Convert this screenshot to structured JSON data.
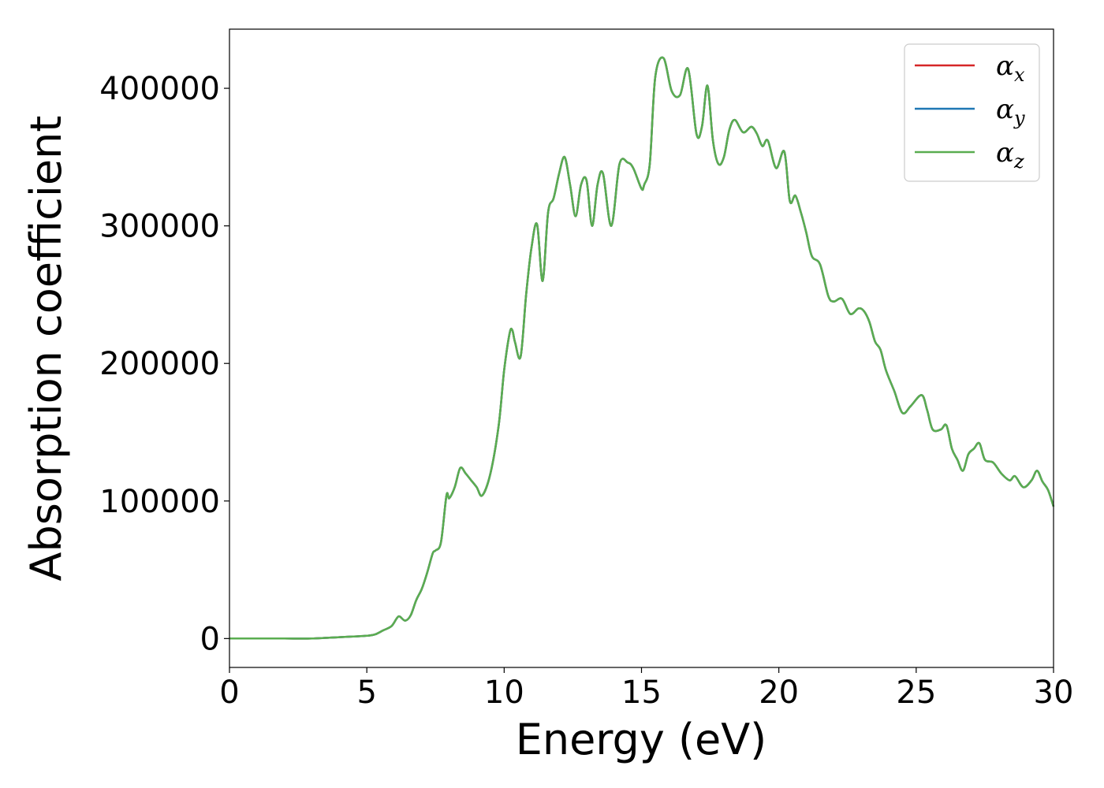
{
  "chart_data": {
    "type": "line",
    "xlabel": "Energy (eV)",
    "ylabel": "Absorption coefficient",
    "xlim": [
      0,
      30
    ],
    "ylim": [
      -21000,
      443000
    ],
    "xticks": [
      0,
      5,
      10,
      15,
      20,
      25,
      30
    ],
    "xtick_labels": [
      "0",
      "5",
      "10",
      "15",
      "20",
      "25",
      "30"
    ],
    "yticks": [
      0,
      100000,
      200000,
      300000,
      400000
    ],
    "ytick_labels": [
      "0",
      "100000",
      "200000",
      "300000",
      "400000"
    ],
    "grid": false,
    "legend_position": "top-right",
    "x": [
      0,
      1,
      2,
      3,
      4,
      4.5,
      5,
      5.3,
      5.6,
      5.9,
      6.1,
      6.2,
      6.4,
      6.6,
      6.8,
      7.0,
      7.2,
      7.4,
      7.5,
      7.7,
      7.9,
      8.0,
      8.2,
      8.4,
      8.6,
      8.8,
      9.0,
      9.2,
      9.5,
      9.8,
      10.0,
      10.2,
      10.3,
      10.4,
      10.6,
      10.8,
      11.0,
      11.2,
      11.4,
      11.6,
      11.8,
      12.0,
      12.2,
      12.4,
      12.6,
      12.8,
      13.0,
      13.2,
      13.4,
      13.6,
      13.9,
      14.2,
      14.5,
      14.7,
      15.0,
      15.1,
      15.3,
      15.5,
      15.8,
      16.1,
      16.4,
      16.7,
      17.0,
      17.2,
      17.4,
      17.6,
      17.8,
      18.0,
      18.2,
      18.4,
      18.7,
      19.0,
      19.2,
      19.4,
      19.6,
      19.9,
      20.2,
      20.4,
      20.6,
      20.8,
      21.0,
      21.2,
      21.5,
      21.8,
      22.0,
      22.3,
      22.6,
      22.9,
      23.1,
      23.3,
      23.5,
      23.7,
      23.9,
      24.2,
      24.5,
      24.8,
      25.2,
      25.4,
      25.6,
      25.9,
      26.1,
      26.3,
      26.5,
      26.7,
      26.9,
      27.1,
      27.3,
      27.5,
      27.8,
      28.1,
      28.4,
      28.6,
      28.9,
      29.2,
      29.4,
      29.6,
      29.8,
      30.0
    ],
    "series": [
      {
        "name": "α_x",
        "label_main": "α",
        "label_sub": "x",
        "color": "#d62728",
        "values": [
          0,
          0,
          0,
          0,
          1000,
          1500,
          2000,
          3000,
          6000,
          9000,
          15000,
          16000,
          13000,
          17000,
          28000,
          36000,
          48000,
          62000,
          64000,
          70000,
          104000,
          102000,
          110000,
          124000,
          120000,
          115000,
          110000,
          104000,
          120000,
          155000,
          195000,
          222000,
          224000,
          215000,
          205000,
          250000,
          285000,
          301000,
          260000,
          310000,
          320000,
          338000,
          350000,
          330000,
          307000,
          330000,
          333000,
          300000,
          330000,
          338000,
          300000,
          345000,
          346000,
          342000,
          327000,
          330000,
          345000,
          408000,
          422000,
          398000,
          395000,
          414000,
          367000,
          372000,
          402000,
          362000,
          345000,
          350000,
          370000,
          377000,
          368000,
          372000,
          367000,
          358000,
          362000,
          342000,
          354000,
          318000,
          322000,
          310000,
          295000,
          278000,
          272000,
          249000,
          245000,
          247000,
          236000,
          240000,
          238000,
          230000,
          216000,
          210000,
          195000,
          180000,
          164000,
          169000,
          177000,
          166000,
          152000,
          152000,
          155000,
          138000,
          130000,
          122000,
          134000,
          138000,
          142000,
          130000,
          128000,
          120000,
          115000,
          118000,
          110000,
          115000,
          122000,
          114000,
          108000,
          96000
        ]
      },
      {
        "name": "α_y",
        "label_main": "α",
        "label_sub": "y",
        "color": "#1f77b4",
        "values": [
          0,
          0,
          0,
          0,
          1000,
          1500,
          2000,
          3000,
          6000,
          9000,
          15000,
          16000,
          13000,
          17000,
          28000,
          36000,
          48000,
          62000,
          64000,
          70000,
          104000,
          102000,
          110000,
          124000,
          120000,
          115000,
          110000,
          104000,
          120000,
          155000,
          195000,
          222000,
          224000,
          215000,
          205000,
          250000,
          285000,
          301000,
          260000,
          310000,
          320000,
          338000,
          350000,
          330000,
          307000,
          330000,
          333000,
          300000,
          330000,
          338000,
          300000,
          345000,
          346000,
          342000,
          327000,
          330000,
          345000,
          408000,
          422000,
          398000,
          395000,
          414000,
          367000,
          372000,
          402000,
          362000,
          345000,
          350000,
          370000,
          377000,
          368000,
          372000,
          367000,
          358000,
          362000,
          342000,
          354000,
          318000,
          322000,
          310000,
          295000,
          278000,
          272000,
          249000,
          245000,
          247000,
          236000,
          240000,
          238000,
          230000,
          216000,
          210000,
          195000,
          180000,
          164000,
          169000,
          177000,
          166000,
          152000,
          152000,
          155000,
          138000,
          130000,
          122000,
          134000,
          138000,
          142000,
          130000,
          128000,
          120000,
          115000,
          118000,
          110000,
          115000,
          122000,
          114000,
          108000,
          96000
        ]
      },
      {
        "name": "α_z",
        "label_main": "α",
        "label_sub": "z",
        "color": "#5aad50",
        "values": [
          0,
          0,
          0,
          0,
          1000,
          1500,
          2000,
          3000,
          6000,
          9000,
          15000,
          16000,
          13000,
          17000,
          28000,
          36000,
          48000,
          62000,
          64000,
          70000,
          104000,
          102000,
          110000,
          124000,
          120000,
          115000,
          110000,
          104000,
          120000,
          155000,
          195000,
          222000,
          224000,
          215000,
          205000,
          250000,
          285000,
          301000,
          260000,
          310000,
          320000,
          338000,
          350000,
          330000,
          307000,
          330000,
          333000,
          300000,
          330000,
          338000,
          300000,
          345000,
          346000,
          342000,
          327000,
          330000,
          345000,
          408000,
          422000,
          398000,
          395000,
          414000,
          367000,
          372000,
          402000,
          362000,
          345000,
          350000,
          370000,
          377000,
          368000,
          372000,
          367000,
          358000,
          362000,
          342000,
          354000,
          318000,
          322000,
          310000,
          295000,
          278000,
          272000,
          249000,
          245000,
          247000,
          236000,
          240000,
          238000,
          230000,
          216000,
          210000,
          195000,
          180000,
          164000,
          169000,
          177000,
          166000,
          152000,
          152000,
          155000,
          138000,
          130000,
          122000,
          134000,
          138000,
          142000,
          130000,
          128000,
          120000,
          115000,
          118000,
          110000,
          115000,
          122000,
          114000,
          108000,
          96000
        ]
      }
    ]
  }
}
